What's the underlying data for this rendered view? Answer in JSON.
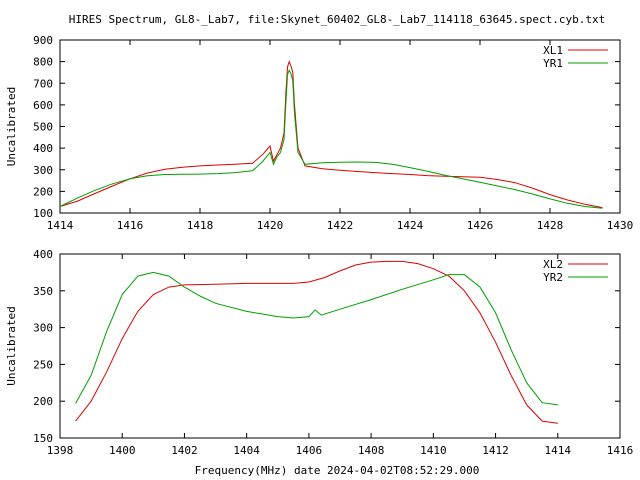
{
  "title": "HIRES Spectrum, GL8-_Lab7, file:Skynet_60402_GL8-_Lab7_114118_63645.spect.cyb.txt",
  "xlabel_bottom": "Frequency(MHz) date 2024-04-02T08:52:29.000",
  "chart_data": [
    {
      "type": "line",
      "panel": "top",
      "ylabel": "Uncalibrated",
      "xlim": [
        1414,
        1430
      ],
      "ylim": [
        100,
        900
      ],
      "xticks": [
        1414,
        1416,
        1418,
        1420,
        1422,
        1424,
        1426,
        1428,
        1430
      ],
      "yticks": [
        100,
        200,
        300,
        400,
        500,
        600,
        700,
        800,
        900
      ],
      "legend_position": "top-right",
      "series": [
        {
          "name": "XL1",
          "color": "#e00000",
          "x": [
            1414.0,
            1414.5,
            1415.0,
            1415.5,
            1416.0,
            1416.5,
            1417.0,
            1417.5,
            1418.0,
            1418.5,
            1419.0,
            1419.5,
            1419.8,
            1420.0,
            1420.1,
            1420.2,
            1420.3,
            1420.4,
            1420.45,
            1420.5,
            1420.55,
            1420.6,
            1420.65,
            1420.7,
            1420.8,
            1421.0,
            1421.5,
            1422.0,
            1422.5,
            1423.0,
            1423.5,
            1424.0,
            1424.5,
            1425.0,
            1425.5,
            1426.0,
            1426.5,
            1427.0,
            1427.5,
            1428.0,
            1428.5,
            1429.0,
            1429.5
          ],
          "y": [
            130,
            155,
            190,
            225,
            258,
            285,
            302,
            312,
            318,
            322,
            325,
            330,
            372,
            410,
            340,
            370,
            400,
            470,
            650,
            775,
            800,
            780,
            750,
            600,
            400,
            318,
            305,
            298,
            292,
            287,
            282,
            278,
            273,
            270,
            268,
            265,
            255,
            240,
            215,
            185,
            160,
            140,
            125
          ]
        },
        {
          "name": "YR1",
          "color": "#00a000",
          "x": [
            1414.0,
            1414.5,
            1415.0,
            1415.5,
            1416.0,
            1416.5,
            1417.0,
            1417.5,
            1418.0,
            1418.5,
            1419.0,
            1419.5,
            1419.8,
            1420.0,
            1420.1,
            1420.2,
            1420.3,
            1420.4,
            1420.45,
            1420.5,
            1420.55,
            1420.6,
            1420.65,
            1420.7,
            1420.8,
            1421.0,
            1421.5,
            1422.0,
            1422.5,
            1423.0,
            1423.5,
            1424.0,
            1424.5,
            1425.0,
            1425.5,
            1426.0,
            1426.5,
            1427.0,
            1427.5,
            1428.0,
            1428.5,
            1429.0,
            1429.5
          ],
          "y": [
            130,
            170,
            205,
            235,
            258,
            272,
            278,
            279,
            280,
            282,
            287,
            295,
            340,
            380,
            325,
            360,
            380,
            440,
            600,
            740,
            760,
            745,
            710,
            560,
            380,
            325,
            332,
            335,
            336,
            334,
            325,
            310,
            293,
            275,
            258,
            242,
            225,
            208,
            188,
            165,
            145,
            130,
            122
          ]
        }
      ]
    },
    {
      "type": "line",
      "panel": "bottom",
      "ylabel": "Uncalibrated",
      "xlabel": "Frequency(MHz) date 2024-04-02T08:52:29.000",
      "xlim": [
        1398,
        1416
      ],
      "ylim": [
        150,
        400
      ],
      "xticks": [
        1398,
        1400,
        1402,
        1404,
        1406,
        1408,
        1410,
        1412,
        1414,
        1416
      ],
      "yticks": [
        150,
        200,
        250,
        300,
        350,
        400
      ],
      "legend_position": "top-right",
      "series": [
        {
          "name": "XL2",
          "color": "#e00000",
          "x": [
            1398.5,
            1399.0,
            1399.5,
            1400.0,
            1400.5,
            1401.0,
            1401.5,
            1402.0,
            1403.0,
            1404.0,
            1405.0,
            1405.5,
            1406.0,
            1406.5,
            1407.0,
            1407.5,
            1408.0,
            1408.5,
            1409.0,
            1409.5,
            1410.0,
            1410.5,
            1411.0,
            1411.5,
            1412.0,
            1412.5,
            1413.0,
            1413.5,
            1414.0
          ],
          "y": [
            173,
            200,
            240,
            285,
            322,
            345,
            355,
            358,
            359,
            360,
            360,
            360,
            362,
            368,
            377,
            385,
            389,
            390,
            390,
            387,
            380,
            370,
            350,
            320,
            280,
            235,
            195,
            173,
            170
          ]
        },
        {
          "name": "YR2",
          "color": "#00a000",
          "x": [
            1398.5,
            1399.0,
            1399.5,
            1400.0,
            1400.5,
            1401.0,
            1401.5,
            1402.0,
            1402.5,
            1403.0,
            1404.0,
            1405.0,
            1405.5,
            1406.0,
            1406.2,
            1406.4,
            1407.0,
            1408.0,
            1409.0,
            1410.0,
            1410.5,
            1411.0,
            1411.5,
            1412.0,
            1412.5,
            1413.0,
            1413.5,
            1414.0
          ],
          "y": [
            197,
            235,
            295,
            345,
            370,
            375,
            370,
            355,
            343,
            333,
            322,
            315,
            313,
            315,
            324,
            317,
            325,
            338,
            352,
            365,
            372,
            372,
            355,
            320,
            270,
            225,
            198,
            195
          ]
        }
      ]
    }
  ]
}
